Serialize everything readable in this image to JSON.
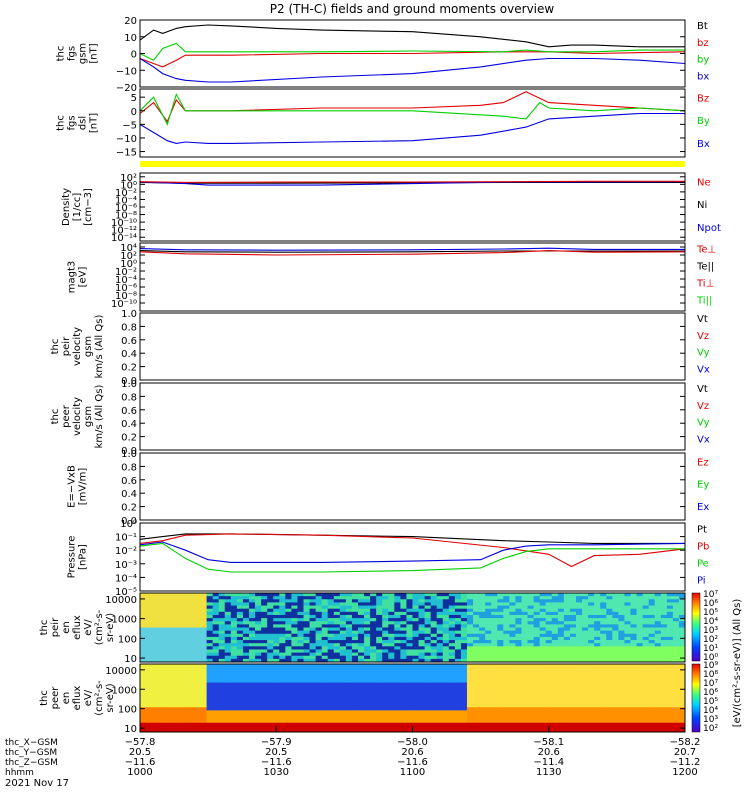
{
  "title": "P2 (TH-C) fields and ground moments overview",
  "colors": {
    "black": "#000000",
    "red": "#e00000",
    "green": "#00d000",
    "blue": "#0000e0",
    "yellow": "#ffff00"
  },
  "chart_data": [
    {
      "type": "line",
      "id": "fgs_gsm",
      "ylabel": [
        "thc",
        "fgs",
        "gsm",
        "[nT]"
      ],
      "ylim": [
        -20,
        20
      ],
      "yticks": [
        {
          "v": 20,
          "l": "20"
        },
        {
          "v": 10,
          "l": "10"
        },
        {
          "v": 0,
          "l": "0"
        },
        {
          "v": -10,
          "l": "−10"
        },
        {
          "v": -20,
          "l": "−20"
        }
      ],
      "legend": [
        {
          "name": "Bt",
          "color": "black"
        },
        {
          "name": "bz",
          "color": "red"
        },
        {
          "name": "by",
          "color": "green"
        },
        {
          "name": "bx",
          "color": "blue"
        }
      ],
      "series": [
        {
          "name": "Bt",
          "color": "black",
          "x": [
            0,
            3,
            5,
            8,
            10,
            15,
            20,
            30,
            40,
            60,
            75,
            85,
            90,
            95,
            100,
            110,
            120
          ],
          "y": [
            8,
            14,
            12,
            15,
            16,
            17,
            16.5,
            15,
            14,
            13,
            10,
            7,
            4,
            5,
            5,
            4,
            4
          ]
        },
        {
          "name": "bz",
          "color": "red",
          "x": [
            0,
            3,
            5,
            8,
            10,
            20,
            40,
            60,
            80,
            90,
            100,
            120
          ],
          "y": [
            -3,
            -6,
            -8,
            -4,
            -1,
            -1,
            0,
            0,
            1,
            1,
            0,
            1
          ]
        },
        {
          "name": "by",
          "color": "green",
          "x": [
            0,
            3,
            5,
            8,
            10,
            20,
            40,
            60,
            80,
            85,
            90,
            100,
            110,
            120
          ],
          "y": [
            0,
            -4,
            3,
            6,
            1,
            1,
            1,
            1.5,
            1,
            2,
            1,
            1,
            2,
            2
          ]
        },
        {
          "name": "bx",
          "color": "blue",
          "x": [
            0,
            3,
            5,
            8,
            10,
            15,
            20,
            40,
            60,
            75,
            85,
            90,
            100,
            110,
            120
          ],
          "y": [
            -3,
            -8,
            -12,
            -15,
            -16,
            -17,
            -17,
            -14,
            -12,
            -8,
            -4,
            -3,
            -3,
            -4,
            -6
          ]
        }
      ]
    },
    {
      "type": "line",
      "id": "fgs_dsl",
      "ylabel": [
        "thc",
        "fgs",
        "dsl",
        "[nT]"
      ],
      "ylim": [
        -17,
        8
      ],
      "yticks": [
        {
          "v": 5,
          "l": "5"
        },
        {
          "v": 0,
          "l": "0"
        },
        {
          "v": -5,
          "l": "−5"
        },
        {
          "v": -10,
          "l": "−10"
        },
        {
          "v": -15,
          "l": "−15"
        }
      ],
      "legend": [
        {
          "name": "Bz",
          "color": "red"
        },
        {
          "name": "By",
          "color": "green"
        },
        {
          "name": "Bx",
          "color": "blue"
        }
      ],
      "series": [
        {
          "name": "Bz",
          "color": "red",
          "x": [
            0,
            3,
            6,
            8,
            10,
            20,
            40,
            60,
            75,
            80,
            85,
            90,
            100,
            110,
            120
          ],
          "y": [
            -1,
            3,
            -4,
            4,
            0,
            0,
            1,
            1,
            2,
            3,
            7,
            3,
            2,
            1,
            0
          ]
        },
        {
          "name": "By",
          "color": "green",
          "x": [
            0,
            3,
            6,
            8,
            10,
            20,
            40,
            60,
            80,
            85,
            88,
            90,
            100,
            110,
            120
          ],
          "y": [
            0,
            5,
            -5,
            6,
            0,
            0,
            0,
            0,
            -2,
            -3,
            3,
            1,
            0,
            1,
            0
          ]
        },
        {
          "name": "Bx",
          "color": "blue",
          "x": [
            0,
            3,
            6,
            8,
            10,
            15,
            20,
            40,
            60,
            75,
            85,
            90,
            100,
            110,
            120
          ],
          "y": [
            -5,
            -8,
            -11,
            -12,
            -11.5,
            -12,
            -12,
            -11.5,
            -11,
            -9,
            -6,
            -3,
            -2,
            -1,
            -1
          ]
        }
      ]
    },
    {
      "type": "line",
      "id": "density",
      "ylabel": [
        "Density",
        "[1/cc]",
        "[cm−3]"
      ],
      "yscale": "log",
      "ylim": [
        -15,
        3
      ],
      "yticks": [
        {
          "v": 2,
          "l": "10²"
        },
        {
          "v": 0,
          "l": "10⁰"
        },
        {
          "v": -2,
          "l": "10⁻²"
        },
        {
          "v": -4,
          "l": "10⁻⁴"
        },
        {
          "v": -6,
          "l": "10⁻⁶"
        },
        {
          "v": -8,
          "l": "10⁻⁸"
        },
        {
          "v": -10,
          "l": "10⁻¹⁰"
        },
        {
          "v": -12,
          "l": "10⁻¹²"
        },
        {
          "v": -14,
          "l": "10⁻¹⁴"
        }
      ],
      "legend": [
        {
          "name": "Ne",
          "color": "red"
        },
        {
          "name": "Ni",
          "color": "black"
        },
        {
          "name": "Npot",
          "color": "blue"
        }
      ],
      "series": [
        {
          "name": "Ni",
          "color": "black",
          "x": [
            0,
            10,
            30,
            60,
            80,
            100,
            120
          ],
          "y": [
            0.5,
            0.3,
            0.3,
            0.4,
            0.5,
            0.5,
            0.5
          ]
        },
        {
          "name": "Npot",
          "color": "blue",
          "x": [
            0,
            10,
            15,
            40,
            60,
            80,
            120
          ],
          "y": [
            0.6,
            0.2,
            -0.2,
            -0.2,
            0.2,
            0.6,
            0.7
          ]
        },
        {
          "name": "Ne",
          "color": "red",
          "x": [
            0,
            10,
            30,
            60,
            80,
            100,
            120
          ],
          "y": [
            0.7,
            0.5,
            0.6,
            0.6,
            0.7,
            0.8,
            0.8
          ]
        }
      ]
    },
    {
      "type": "line",
      "id": "magt3",
      "ylabel": [
        "magt3",
        "[eV]"
      ],
      "yscale": "log",
      "ylim": [
        -12,
        5
      ],
      "yticks": [
        {
          "v": 4,
          "l": "10⁴"
        },
        {
          "v": 2,
          "l": "10²"
        },
        {
          "v": 0,
          "l": "10⁰"
        },
        {
          "v": -2,
          "l": "10⁻²"
        },
        {
          "v": -4,
          "l": "10⁻⁴"
        },
        {
          "v": -6,
          "l": "10⁻⁶"
        },
        {
          "v": -8,
          "l": "10⁻⁸"
        },
        {
          "v": -10,
          "l": "10⁻¹⁰"
        }
      ],
      "legend": [
        {
          "name": "Te⊥",
          "color": "red"
        },
        {
          "name": "Te||",
          "color": "black"
        },
        {
          "name": "Ti⊥",
          "color": "red"
        },
        {
          "name": "Ti||",
          "color": "green"
        }
      ],
      "series": [
        {
          "name": "Ti||",
          "color": "blue",
          "x": [
            0,
            10,
            30,
            60,
            80,
            90,
            100,
            120
          ],
          "y": [
            3.6,
            3.3,
            3.2,
            3.3,
            3.5,
            3.7,
            3.4,
            3.4
          ]
        },
        {
          "name": "Te||",
          "color": "black",
          "x": [
            0,
            10,
            30,
            60,
            80,
            100,
            120
          ],
          "y": [
            3.1,
            2.8,
            2.7,
            2.8,
            3.0,
            3.0,
            3.0
          ]
        },
        {
          "name": "Te⊥",
          "color": "red",
          "x": [
            0,
            10,
            30,
            60,
            80,
            90,
            100,
            120
          ],
          "y": [
            2.8,
            2.3,
            2.0,
            2.2,
            2.6,
            3.1,
            2.7,
            2.8
          ]
        }
      ]
    },
    {
      "type": "line",
      "id": "peir_velocity",
      "ylabel": [
        "thc",
        "peir",
        "velocity",
        "gsm",
        "km/s (All Qs)"
      ],
      "ylim": [
        0,
        1
      ],
      "yticks": [
        {
          "v": 1,
          "l": "1.0"
        },
        {
          "v": 0.8,
          "l": "0.8"
        },
        {
          "v": 0.6,
          "l": "0.6"
        },
        {
          "v": 0.4,
          "l": "0.4"
        },
        {
          "v": 0.2,
          "l": "0.2"
        },
        {
          "v": 0,
          "l": "0.0"
        }
      ],
      "legend": [
        {
          "name": "Vt",
          "color": "black"
        },
        {
          "name": "Vz",
          "color": "red"
        },
        {
          "name": "Vy",
          "color": "green"
        },
        {
          "name": "Vx",
          "color": "blue"
        }
      ],
      "series": []
    },
    {
      "type": "line",
      "id": "peer_velocity",
      "ylabel": [
        "thc",
        "peer",
        "velocity",
        "gsm",
        "km/s (All Qs)"
      ],
      "ylim": [
        0,
        1
      ],
      "yticks": [
        {
          "v": 1,
          "l": "1.0"
        },
        {
          "v": 0.8,
          "l": "0.8"
        },
        {
          "v": 0.6,
          "l": "0.6"
        },
        {
          "v": 0.4,
          "l": "0.4"
        },
        {
          "v": 0.2,
          "l": "0.2"
        },
        {
          "v": 0,
          "l": "0.0"
        }
      ],
      "legend": [
        {
          "name": "Vt",
          "color": "black"
        },
        {
          "name": "Vz",
          "color": "red"
        },
        {
          "name": "Vy",
          "color": "green"
        },
        {
          "name": "Vx",
          "color": "blue"
        }
      ],
      "series": []
    },
    {
      "type": "line",
      "id": "efield",
      "ylabel": [
        "E=−VxB",
        "[mV/m]"
      ],
      "ylim": [
        0,
        1
      ],
      "yticks": [
        {
          "v": 1,
          "l": "1.0"
        },
        {
          "v": 0.8,
          "l": "0.8"
        },
        {
          "v": 0.6,
          "l": "0.6"
        },
        {
          "v": 0.4,
          "l": "0.4"
        },
        {
          "v": 0.2,
          "l": "0.2"
        },
        {
          "v": 0,
          "l": "0.0"
        }
      ],
      "legend": [
        {
          "name": "Ez",
          "color": "red"
        },
        {
          "name": "Ey",
          "color": "green"
        },
        {
          "name": "Ex",
          "color": "blue"
        }
      ],
      "series": []
    },
    {
      "type": "line",
      "id": "pressure",
      "ylabel": [
        "Pressure",
        "[nPa]"
      ],
      "yscale": "log",
      "ylim": [
        -5,
        0
      ],
      "yticks": [
        {
          "v": 0,
          "l": "10⁰"
        },
        {
          "v": -1,
          "l": "10⁻¹"
        },
        {
          "v": -2,
          "l": "10⁻²"
        },
        {
          "v": -3,
          "l": "10⁻³"
        },
        {
          "v": -4,
          "l": "10⁻⁴"
        },
        {
          "v": -5,
          "l": "10⁻⁵"
        }
      ],
      "legend": [
        {
          "name": "Pt",
          "color": "black"
        },
        {
          "name": "Pb",
          "color": "red"
        },
        {
          "name": "Pe",
          "color": "green"
        },
        {
          "name": "Pi",
          "color": "blue"
        }
      ],
      "series": [
        {
          "name": "Pt",
          "color": "black",
          "x": [
            0,
            5,
            10,
            20,
            40,
            60,
            80,
            90,
            100,
            120
          ],
          "y": [
            -1.2,
            -1.0,
            -0.8,
            -0.8,
            -0.9,
            -1.0,
            -1.3,
            -1.4,
            -1.5,
            -1.5
          ]
        },
        {
          "name": "Pb",
          "color": "red",
          "x": [
            0,
            5,
            10,
            20,
            40,
            60,
            80,
            90,
            95,
            100,
            110,
            120
          ],
          "y": [
            -1.5,
            -1.3,
            -0.9,
            -0.8,
            -0.9,
            -1.1,
            -1.8,
            -2.3,
            -3.2,
            -2.4,
            -2.3,
            -1.9
          ]
        },
        {
          "name": "Pi",
          "color": "blue",
          "x": [
            0,
            5,
            10,
            15,
            20,
            40,
            60,
            75,
            80,
            85,
            90,
            100,
            120
          ],
          "y": [
            -1.6,
            -1.4,
            -2.0,
            -2.7,
            -2.9,
            -2.9,
            -2.8,
            -2.7,
            -2.0,
            -1.7,
            -1.6,
            -1.6,
            -1.5
          ]
        },
        {
          "name": "Pe",
          "color": "green",
          "x": [
            0,
            5,
            10,
            15,
            20,
            40,
            60,
            75,
            80,
            85,
            90,
            100,
            120
          ],
          "y": [
            -1.7,
            -1.5,
            -2.6,
            -3.4,
            -3.6,
            -3.6,
            -3.5,
            -3.3,
            -2.6,
            -2.1,
            -1.9,
            -1.9,
            -1.9
          ]
        }
      ]
    },
    {
      "type": "heatmap",
      "id": "peir_spec",
      "ylabel": [
        "thc",
        "peir",
        "en",
        "eflux",
        "eV/",
        "(cm²-s-",
        "sr-eV)"
      ],
      "yscale": "log",
      "yticks": [
        {
          "v": 4,
          "l": "10000"
        },
        {
          "v": 3,
          "l": "1000"
        },
        {
          "v": 2,
          "l": "100"
        },
        {
          "v": 1,
          "l": "10"
        }
      ]
    },
    {
      "type": "heatmap",
      "id": "peer_spec",
      "ylabel": [
        "thc",
        "peer",
        "en",
        "eflux",
        "eV/",
        "(cm²-s-",
        "sr-eV)"
      ],
      "yscale": "log",
      "yticks": [
        {
          "v": 4,
          "l": "10000"
        },
        {
          "v": 3,
          "l": "1000"
        },
        {
          "v": 2,
          "l": "100"
        },
        {
          "v": 1,
          "l": "10"
        }
      ]
    }
  ],
  "colorbar": {
    "label": "[eV/(cm²-s-sr-eV)] (All Qs)",
    "upper_ticks": [
      "10⁷",
      "10⁶",
      "10⁵",
      "10⁴",
      "10³",
      "10²",
      "10¹",
      "10⁰"
    ],
    "lower_ticks": [
      "10⁹",
      "10⁸",
      "10⁷",
      "10⁶",
      "10⁵",
      "10⁴",
      "10³",
      "10²"
    ]
  },
  "xaxis": {
    "rows": [
      {
        "label": "thc_X−GSM",
        "values": [
          "−57.8",
          "−57.9",
          "−58.0",
          "−58.1",
          "−58.2"
        ]
      },
      {
        "label": "thc_Y−GSM",
        "values": [
          "20.5",
          "20.5",
          "20.6",
          "20.6",
          "20.7"
        ]
      },
      {
        "label": "thc_Z−GSM",
        "values": [
          "−11.6",
          "−11.6",
          "−11.6",
          "−11.4",
          "−11.2"
        ]
      },
      {
        "label": "hhmm",
        "values": [
          "1000",
          "1030",
          "1100",
          "1130",
          "1200"
        ]
      }
    ],
    "date": "2021 Nov 17"
  }
}
